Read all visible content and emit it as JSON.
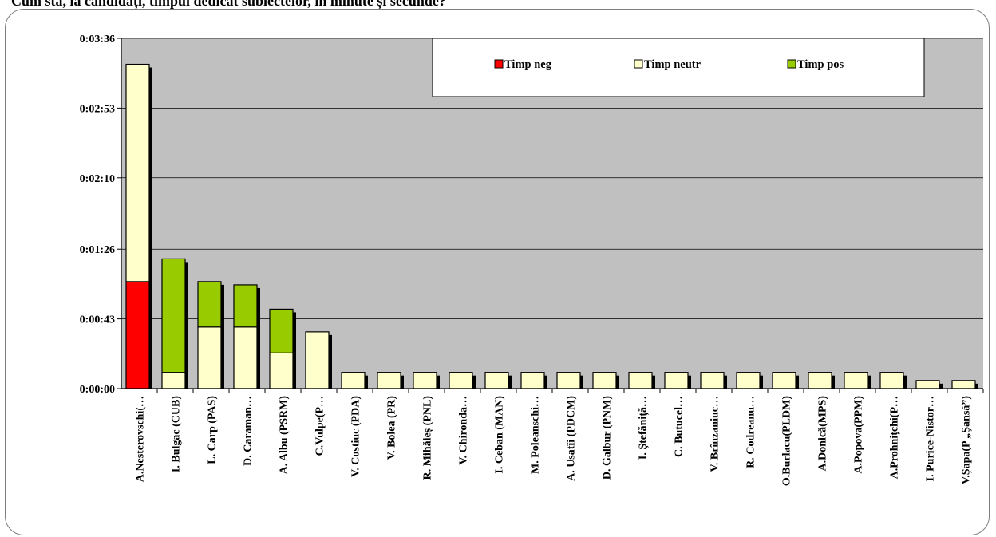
{
  "caption": "Cum stă, la candidați, timpul dedicat subiectelor, în minute și secunde?",
  "chart_data": {
    "type": "bar",
    "stacked": true,
    "title": "",
    "xlabel": "",
    "ylabel": "",
    "y_unit": "seconds",
    "ylim": [
      0,
      216
    ],
    "yticks": [
      0,
      43,
      86,
      130,
      173,
      216
    ],
    "ytick_labels": [
      "0:00:00",
      "0:00:43",
      "0:01:26",
      "0:02:10",
      "0:02:53",
      "0:03:36"
    ],
    "grid": true,
    "legend_position": "top-right",
    "categories": [
      "A.Nesterovschi(…",
      "I. Bulgac (CUB)",
      "L. Carp (PAS)",
      "D. Caraman…",
      "A. Albu (PSRM)",
      "C.Vulpe(P…",
      "V. Costiuc (PDA)",
      "V. Bolea (PR)",
      "R. Mihăieș (PNL)",
      "V. Chironda…",
      "I. Ceban (MAN)",
      "M. Poleanschi…",
      "A. Usatîi (PDCM)",
      "D. Galbur (PNM)",
      "I. Ștefăniță…",
      "C. Butucel…",
      "V. Brînzaniuc…",
      "R. Codreanu…",
      "O.Burlacu(PLDM)",
      "A.Donică(MPS)",
      "A.Popova(PPM)",
      "A.Prohnițchi(P…",
      "I. Purice-Nistor…",
      "V.Șapa(P „Șansă”)"
    ],
    "series": [
      {
        "name": "Timp neg",
        "color": "#ff0000",
        "values": [
          66,
          0,
          0,
          0,
          0,
          0,
          0,
          0,
          0,
          0,
          0,
          0,
          0,
          0,
          0,
          0,
          0,
          0,
          0,
          0,
          0,
          0,
          0,
          0
        ]
      },
      {
        "name": "Timp neutr",
        "color": "#ffffcc",
        "values": [
          134,
          10,
          38,
          38,
          22,
          35,
          10,
          10,
          10,
          10,
          10,
          10,
          10,
          10,
          10,
          10,
          10,
          10,
          10,
          10,
          10,
          10,
          5,
          5
        ]
      },
      {
        "name": "Timp pos",
        "color": "#99cc00",
        "values": [
          0,
          70,
          28,
          26,
          27,
          0,
          0,
          0,
          0,
          0,
          0,
          0,
          0,
          0,
          0,
          0,
          0,
          0,
          0,
          0,
          0,
          0,
          0,
          0
        ]
      }
    ],
    "colors": {
      "plot_background": "#c0c0c0",
      "gridline": "#000000",
      "bar_border": "#000000",
      "bar_shadow": "#000000"
    }
  }
}
